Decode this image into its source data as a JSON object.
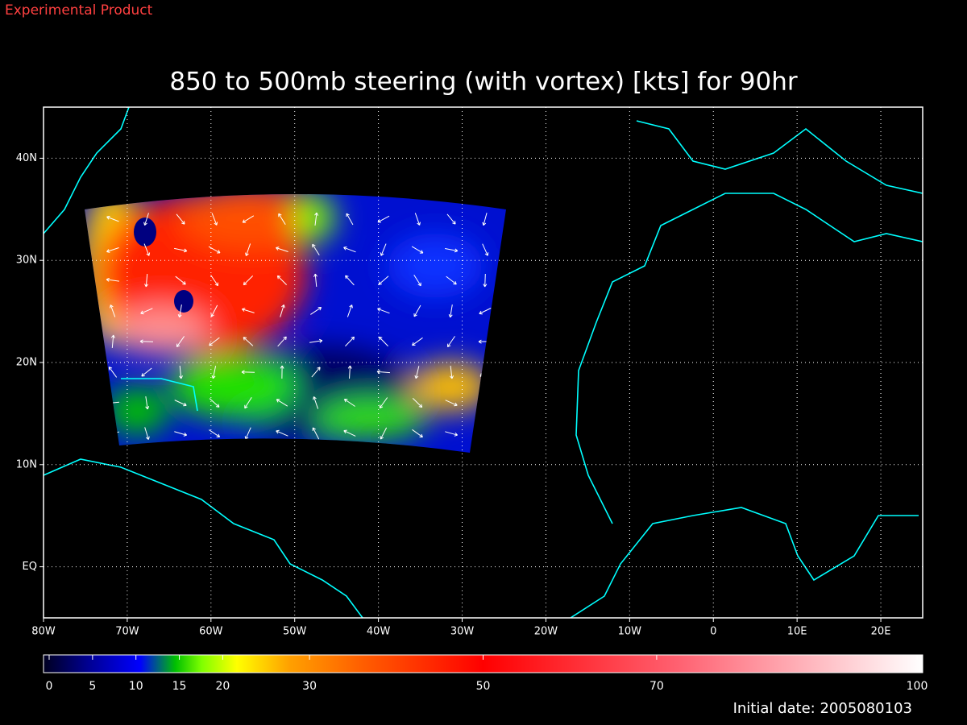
{
  "header": {
    "label": "Experimental Product"
  },
  "title": "850 to 500mb steering (with vortex) [kts] for 90hr",
  "map": {
    "xlim": [
      -80,
      25
    ],
    "ylim": [
      -5,
      45
    ],
    "lon_ticks": [
      {
        "value": -80,
        "label": "80W"
      },
      {
        "value": -70,
        "label": "70W"
      },
      {
        "value": -60,
        "label": "60W"
      },
      {
        "value": -50,
        "label": "50W"
      },
      {
        "value": -40,
        "label": "40W"
      },
      {
        "value": -30,
        "label": "30W"
      },
      {
        "value": -20,
        "label": "20W"
      },
      {
        "value": -10,
        "label": "10W"
      },
      {
        "value": 0,
        "label": "0"
      },
      {
        "value": 10,
        "label": "10E"
      },
      {
        "value": 20,
        "label": "20E"
      }
    ],
    "lat_ticks": [
      {
        "value": 0,
        "label": "EQ"
      },
      {
        "value": 10,
        "label": "10N"
      },
      {
        "value": 20,
        "label": "20N"
      },
      {
        "value": 30,
        "label": "30N"
      },
      {
        "value": 40,
        "label": "40N"
      }
    ]
  },
  "colorbar": {
    "ticks": [
      0,
      5,
      10,
      15,
      20,
      30,
      50,
      70,
      100
    ]
  },
  "footer": {
    "label": "Initial date: 2005080103"
  }
}
